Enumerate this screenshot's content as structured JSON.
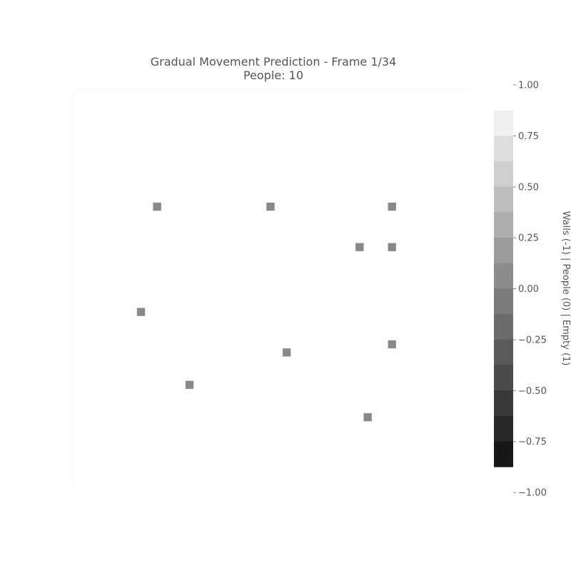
{
  "chart_data": {
    "type": "heatmap",
    "title": "Gradual Movement Prediction - Frame 1/34",
    "subtitle": "People: 10",
    "grid": false,
    "legend": "colorbar-right",
    "background_value": 1,
    "person_value": 0,
    "people_value_color": "#888888",
    "empty_color": "#fdfdfd",
    "grid_size": [
      49,
      49
    ],
    "people": [
      {
        "row": 14,
        "col": 10
      },
      {
        "row": 14,
        "col": 24
      },
      {
        "row": 14,
        "col": 39
      },
      {
        "row": 19,
        "col": 35
      },
      {
        "row": 19,
        "col": 39
      },
      {
        "row": 27,
        "col": 8
      },
      {
        "row": 31,
        "col": 39
      },
      {
        "row": 32,
        "col": 26
      },
      {
        "row": 36,
        "col": 14
      },
      {
        "row": 40,
        "col": 36
      }
    ],
    "colorbar": {
      "label": "Walls (-1) | People (0) | Empty (1)",
      "range": [
        -1.0,
        1.0
      ],
      "levels": 15,
      "ticks": [
        1.0,
        0.75,
        0.5,
        0.25,
        0.0,
        -0.25,
        -0.5,
        -0.75,
        -1.0
      ],
      "tick_labels": [
        "1.00",
        "0.75",
        "0.50",
        "0.25",
        "0.00",
        "−0.25",
        "−0.50",
        "−0.75",
        "−1.00"
      ]
    }
  }
}
